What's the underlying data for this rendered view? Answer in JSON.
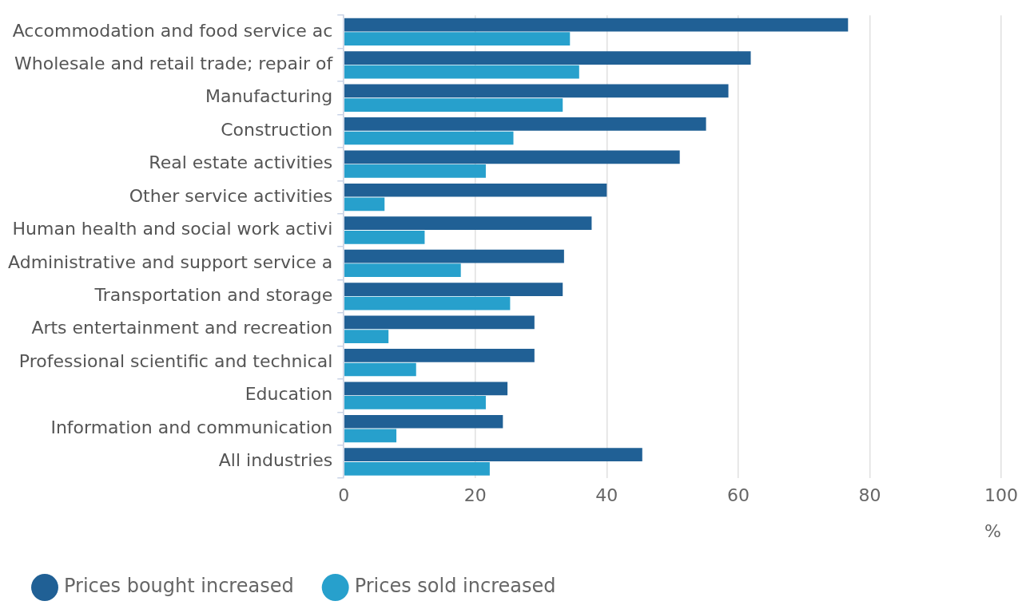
{
  "chart_data": {
    "type": "bar",
    "orientation": "horizontal",
    "xlabel": "%",
    "categories": [
      "Accommodation and food service ac",
      "Wholesale and retail trade; repair of",
      "Manufacturing",
      "Construction",
      "Real estate activities",
      "Other service activities",
      "Human health and social work activi",
      "Administrative and support service a",
      "Transportation and storage",
      "Arts entertainment and recreation",
      "Professional scientific and technical",
      "Education",
      "Information and communication",
      "All industries"
    ],
    "series": [
      {
        "name": "Prices bought increased",
        "color": "#206095",
        "values": [
          76.7,
          61.9,
          58.5,
          55.1,
          51.1,
          40.0,
          37.7,
          33.5,
          33.3,
          29.0,
          29.0,
          24.9,
          24.2,
          45.4
        ]
      },
      {
        "name": "Prices sold increased",
        "color": "#27a0cc",
        "values": [
          34.4,
          35.8,
          33.3,
          25.8,
          21.6,
          6.2,
          12.3,
          17.8,
          25.3,
          6.8,
          11.0,
          21.6,
          8.0,
          22.2
        ]
      }
    ],
    "xlim": [
      0,
      100
    ],
    "xticks": [
      0,
      20,
      40,
      60,
      80,
      100
    ],
    "grid": "x",
    "legend": "bottom left"
  }
}
